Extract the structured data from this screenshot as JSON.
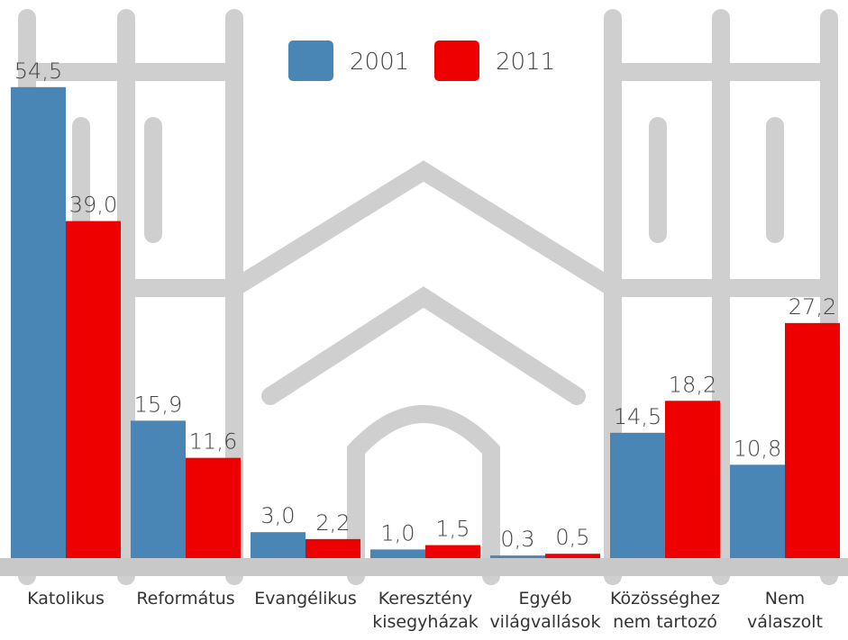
{
  "chart_data": {
    "type": "bar",
    "categories": [
      "Katolikus",
      "Református",
      "Evangélikus",
      "Keresztény\nkisegyházak",
      "Egyéb\nvilágvallások",
      "Közösséghez\nnem tartozó",
      "Nem\nválaszolt"
    ],
    "series": [
      {
        "name": "2001",
        "color": "#4a86b5",
        "values": [
          54.5,
          15.9,
          3.0,
          1.0,
          0.3,
          14.5,
          10.8
        ],
        "value_labels": [
          "54,5",
          "15,9",
          "3,0",
          "1,0",
          "0,3",
          "14,5",
          "10,8"
        ]
      },
      {
        "name": "2011",
        "color": "#ee0000",
        "values": [
          39.0,
          11.6,
          2.2,
          1.5,
          0.5,
          18.2,
          27.2
        ],
        "value_labels": [
          "39,0",
          "11,6",
          "2,2",
          "1,5",
          "0,5",
          "18,2",
          "27,2"
        ]
      }
    ],
    "legend": "top"
  }
}
